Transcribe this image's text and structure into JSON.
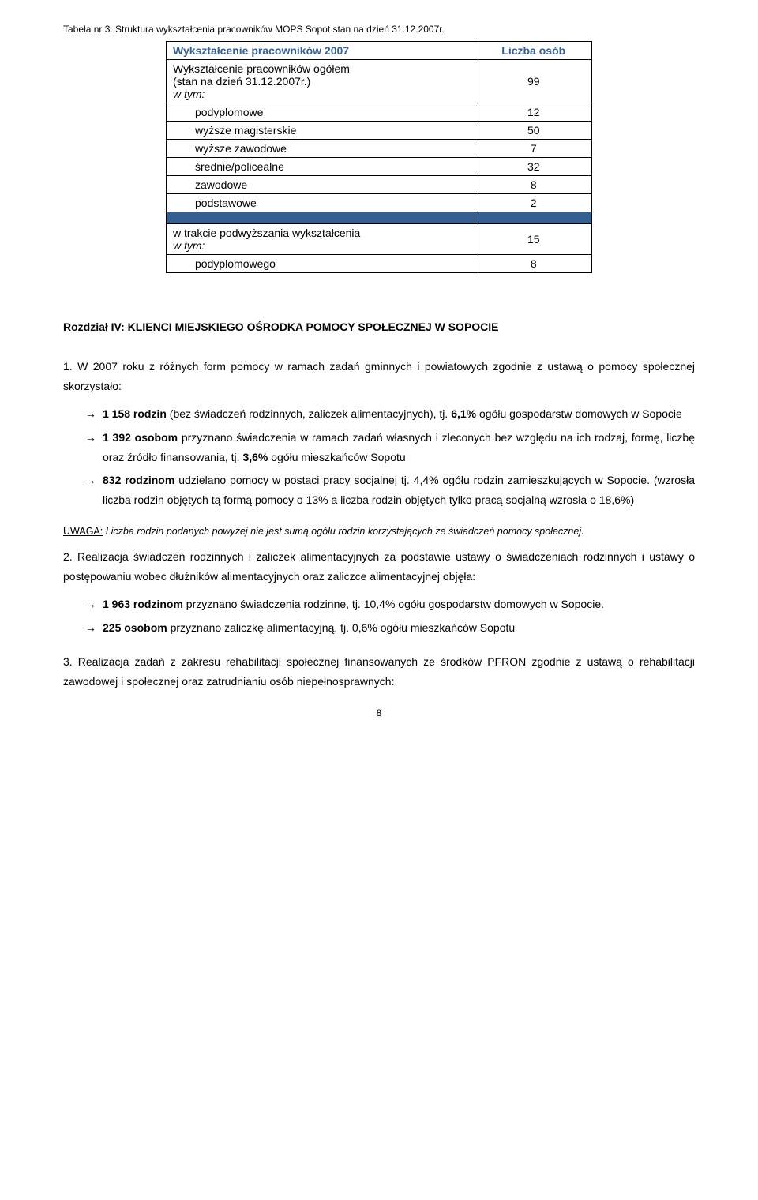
{
  "caption": "Tabela nr 3. Struktura wykształcenia pracowników MOPS Sopot stan na dzień 31.12.2007r.",
  "table": {
    "header_left": "Wykształcenie pracowników 2007",
    "header_right": "Liczba osób",
    "row_total_label_line1": "Wykształcenie pracowników ogółem",
    "row_total_label_line2": "(stan na dzień 31.12.2007r.)",
    "row_total_val": "99",
    "row_wtym": "w tym:",
    "r1_label": "podyplomowe",
    "r1_val": "12",
    "r2_label": "wyższe magisterskie",
    "r2_val": "50",
    "r3_label": "wyższe zawodowe",
    "r3_val": "7",
    "r4_label": "średnie/policealne",
    "r4_val": "32",
    "r5_label": "zawodowe",
    "r5_val": "8",
    "r6_label": "podstawowe",
    "r6_val": "2",
    "r7_label_line1": "w trakcie podwyższania wykształcenia",
    "r7_label_line2": "w tym:",
    "r7_val": "15",
    "r8_label": "podyplomowego",
    "r8_val": "8"
  },
  "section_heading": "Rozdział IV: KLIENCI MIEJSKIEGO OŚRODKA POMOCY SPOŁECZNEJ W SOPOCIE",
  "para1_lead": "1. W 2007 roku z różnych form pomocy w ramach zadań gminnych i powiatowych zgodnie z ustawą o pomocy społecznej skorzystało:",
  "bullets1": {
    "b1_bold": "1 158 rodzin",
    "b1_rest_a": " (bez świadczeń rodzinnych, zaliczek alimentacyjnych), tj. ",
    "b1_pct": "6,1%",
    "b1_rest_b": " ogółu gospodarstw domowych w Sopocie",
    "b2_bold": "1 392 osobom",
    "b2_rest_a": " przyznano świadczenia w ramach zadań własnych i zleconych bez względu na ich rodzaj, formę, liczbę oraz źródło finansowania, tj. ",
    "b2_pct": "3,6%",
    "b2_rest_b": " ogółu mieszkańców Sopotu",
    "b3_bold": "832 rodzinom",
    "b3_rest_a": " udzielano pomocy w postaci pracy socjalnej tj. 4,4% ogółu rodzin zamieszkujących w Sopocie. (wzrosła liczba rodzin objętych tą formą pomocy o 13% a liczba rodzin objętych tylko pracą socjalną wzrosła o 18,6%)"
  },
  "note_label": "UWAGA:",
  "note_text": " Liczba rodzin podanych powyżej nie jest sumą ogółu rodzin korzystających ze świadczeń pomocy społecznej.",
  "para2": "2. Realizacja świadczeń rodzinnych i zaliczek alimentacyjnych za podstawie ustawy o świadczeniach rodzinnych i ustawy o postępowaniu wobec dłużników alimentacyjnych oraz zaliczce alimentacyjnej objęła:",
  "bullets2": {
    "b1_bold": "1 963 rodzinom",
    "b1_rest": " przyznano świadczenia rodzinne, tj. 10,4% ogółu gospodarstw domowych w Sopocie.",
    "b2_bold": "225 osobom",
    "b2_rest": " przyznano zaliczkę alimentacyjną, tj. 0,6% ogółu mieszkańców Sopotu"
  },
  "para3": "3. Realizacja zadań z zakresu rehabilitacji społecznej finansowanych ze środków PFRON zgodnie z ustawą o rehabilitacji zawodowej i społecznej oraz zatrudnianiu osób niepełnosprawnych:",
  "page_number": "8"
}
